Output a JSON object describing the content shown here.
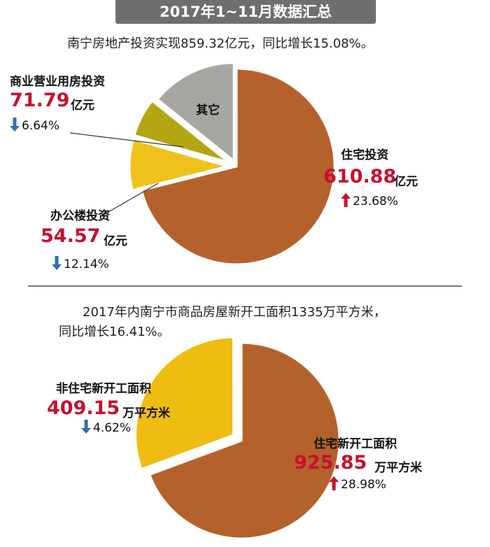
{
  "banner": "2017年1~11月数据汇总",
  "section1": {
    "summary": "南宁房地产投资实现859.32亿元，同比增长15.08%。",
    "labels": {
      "residential": {
        "name": "住宅投资",
        "value": "610.88",
        "unit": "亿元",
        "change": "23.68%",
        "direction": "up"
      },
      "commercial": {
        "name": "商业营业用房投资",
        "value": "71.79",
        "unit": "亿元",
        "change": "6.64%",
        "direction": "down"
      },
      "office": {
        "name": "办公楼投资",
        "value": "54.57",
        "unit": "亿元",
        "change": "12.14%",
        "direction": "down"
      },
      "other": {
        "name": "其它"
      }
    }
  },
  "section2": {
    "summary_line1": "2017年内南宁市商品房屋新开工面积1335万平方米，",
    "summary_line2": "同比增长16.41%。",
    "labels": {
      "non_residential": {
        "name": "非住宅新开工面积",
        "value": "409.15",
        "unit": "万平方米",
        "change": "4.62%",
        "direction": "down"
      },
      "residential": {
        "name": "住宅新开工面积",
        "value": "925.85",
        "unit": "万平方米",
        "change": "28.98%",
        "direction": "up"
      }
    }
  },
  "colors": {
    "residential": "#b5612b",
    "commercial": "#efc21b",
    "office": "#b3a612",
    "other": "#a8a6a3",
    "non_residential": "#efbc12",
    "value_red": "#c8102e",
    "arrow_up": "#c8102e",
    "arrow_down": "#2f6fb6"
  },
  "chart_data": [
    {
      "type": "pie",
      "title": "南宁房地产投资实现859.32亿元，同比增长15.08%。",
      "unit": "亿元",
      "total": 859.32,
      "categories": [
        "住宅投资",
        "商业营业用房投资",
        "办公楼投资",
        "其它"
      ],
      "values": [
        610.88,
        71.79,
        54.57,
        122.08
      ],
      "yoy_change_pct": [
        23.68,
        -6.64,
        -12.14,
        null
      ]
    },
    {
      "type": "pie",
      "title": "2017年内南宁市商品房屋新开工面积1335万平方米，同比增长16.41%。",
      "unit": "万平方米",
      "total": 1335,
      "categories": [
        "住宅新开工面积",
        "非住宅新开工面积"
      ],
      "values": [
        925.85,
        409.15
      ],
      "yoy_change_pct": [
        28.98,
        -4.62
      ]
    }
  ]
}
